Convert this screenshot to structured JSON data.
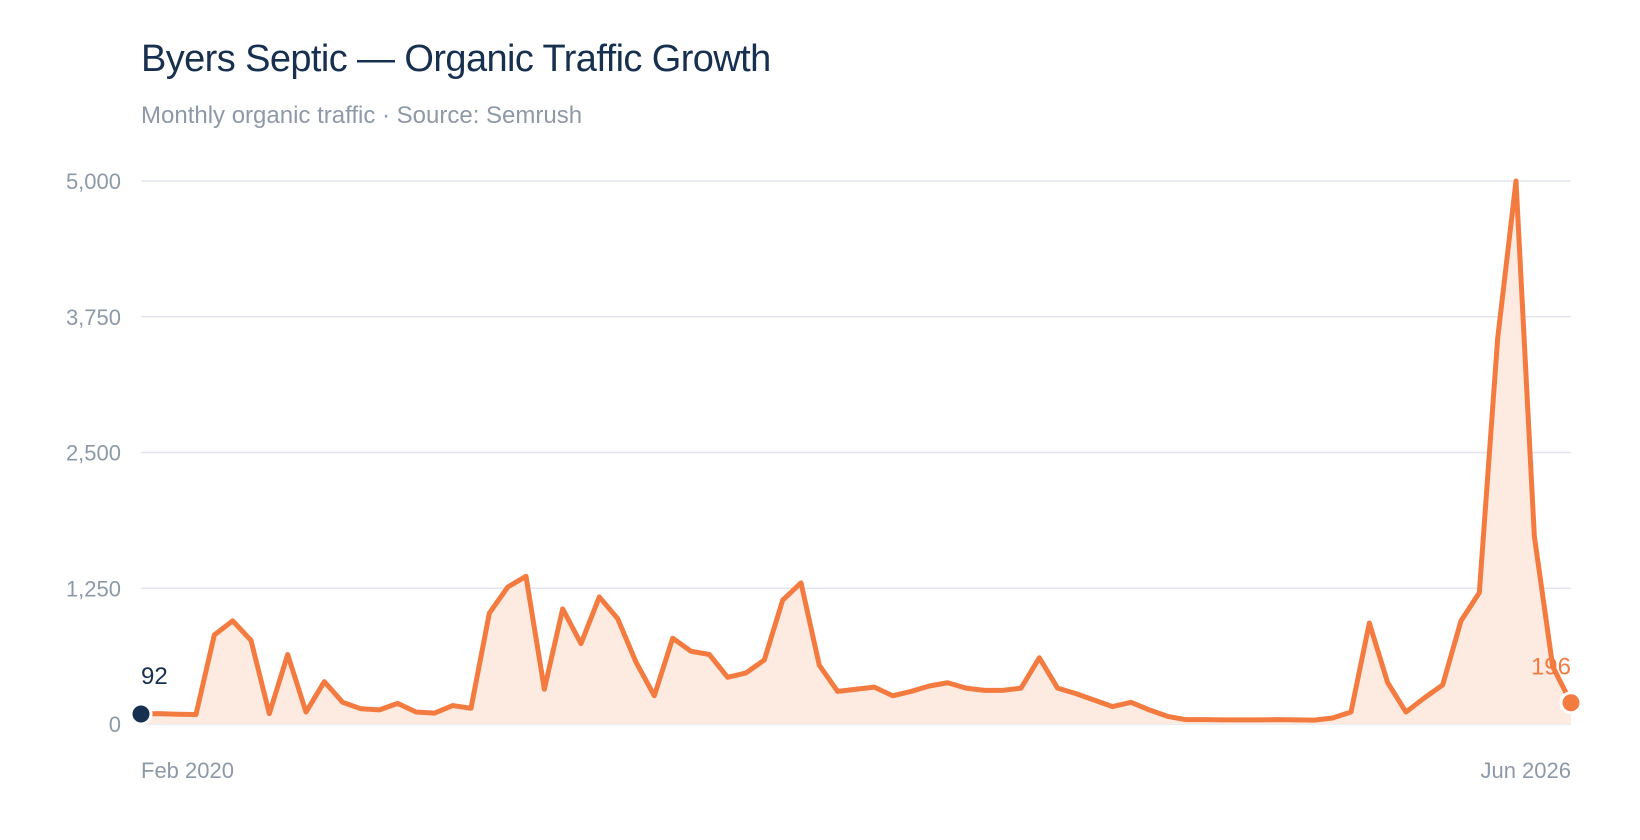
{
  "header": {
    "title": "Byers Septic — Organic Traffic Growth",
    "subtitle": "Monthly organic traffic · Source: Semrush"
  },
  "colors": {
    "line": "#f47b40",
    "area": "#fdebe2",
    "grid": "#e2e6ec",
    "axis_text": "#8e99a8",
    "title": "#17304f",
    "first_point": "#17304f",
    "last_point": "#f47b40"
  },
  "chart_data": {
    "type": "area",
    "title": "Byers Septic — Organic Traffic Growth",
    "subtitle": "Monthly organic traffic · Source: Semrush",
    "xlabel": "",
    "ylabel": "",
    "x_start": "Feb 2020",
    "x_end": "Jun 2026",
    "x_tick_labels": [
      "Feb 2020",
      "Jun 2026"
    ],
    "ylim": [
      0,
      5000
    ],
    "y_ticks": [
      0,
      1250,
      2500,
      3750,
      5000
    ],
    "y_tick_labels": [
      "0",
      "1,250",
      "2,500",
      "3,750",
      "5,000"
    ],
    "grid": true,
    "legend": "none",
    "series": [
      {
        "values": [
          92,
          95,
          90,
          88,
          820,
          950,
          770,
          95,
          640,
          110,
          390,
          200,
          140,
          130,
          190,
          110,
          100,
          170,
          145,
          1020,
          1260,
          1360,
          320,
          1060,
          740,
          1170,
          970,
          570,
          260,
          790,
          670,
          640,
          430,
          470,
          590,
          1140,
          1300,
          540,
          300,
          320,
          340,
          260,
          300,
          350,
          380,
          330,
          310,
          310,
          330,
          610,
          330,
          280,
          220,
          160,
          200,
          130,
          70,
          40,
          40,
          38,
          38,
          38,
          40,
          38,
          36,
          55,
          110,
          930,
          380,
          110,
          240,
          360,
          950,
          1210,
          3550,
          5000,
          1730,
          530,
          196
        ]
      }
    ],
    "annotations": [
      {
        "point": "first",
        "text": "92"
      },
      {
        "point": "last",
        "text": "196"
      }
    ]
  }
}
